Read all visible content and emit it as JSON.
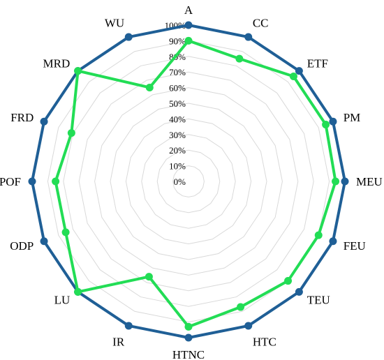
{
  "chart_data": {
    "type": "radar",
    "axes": [
      "A",
      "CC",
      "ETF",
      "PM",
      "MEU",
      "FEU",
      "TEU",
      "HTC",
      "HTNC",
      "IR",
      "LU",
      "ODP",
      "POF",
      "FRD",
      "MRD",
      "WU"
    ],
    "series": [
      {
        "values": [
          100,
          100,
          100,
          100,
          100,
          100,
          100,
          100,
          100,
          100,
          100,
          100,
          100,
          100,
          100,
          100
        ]
      },
      {
        "values": [
          90,
          85,
          95,
          95,
          94,
          90,
          90,
          87,
          93,
          66,
          100,
          85,
          85,
          81,
          100,
          65
        ]
      }
    ],
    "rlim": [
      0,
      100
    ],
    "ticks": [
      "0%",
      "10%",
      "20%",
      "30%",
      "40%",
      "50%",
      "60%",
      "70%",
      "80%",
      "90%",
      "100%"
    ],
    "grid": true,
    "colors": {
      "outer": "#1f5f96",
      "inner": "#22dd55",
      "grid": "#d9d9d9"
    }
  }
}
